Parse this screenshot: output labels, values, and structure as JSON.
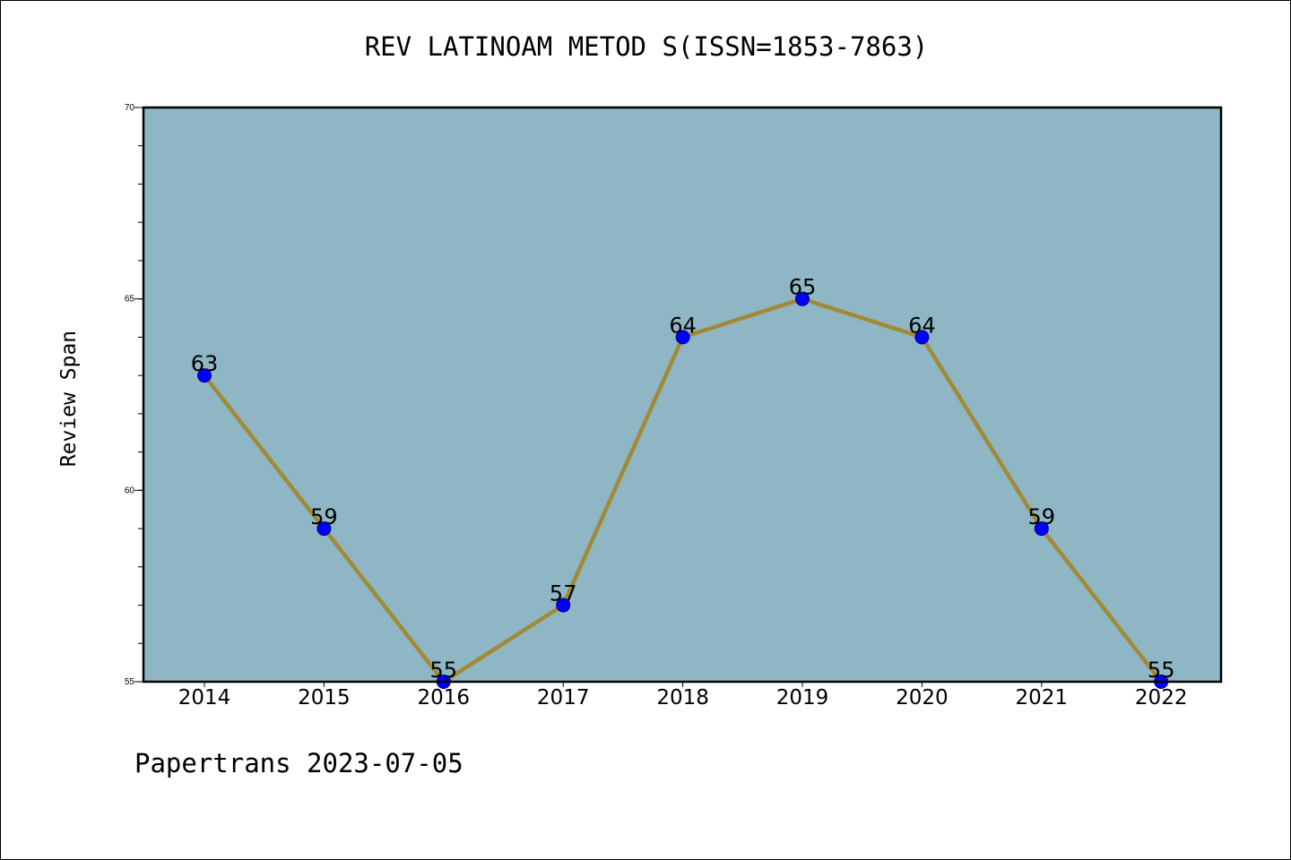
{
  "chart_data": {
    "type": "line",
    "title": "REV LATINOAM METOD S(ISSN=1853-7863)",
    "xlabel": "",
    "ylabel": "Review Span",
    "categories": [
      "2014",
      "2015",
      "2016",
      "2017",
      "2018",
      "2019",
      "2020",
      "2021",
      "2022"
    ],
    "values": [
      63,
      59,
      55,
      57,
      64,
      65,
      64,
      59,
      55
    ],
    "data_labels": [
      "63",
      "59",
      "55",
      "57",
      "64",
      "65",
      "64",
      "59",
      "55"
    ],
    "ylim": [
      55,
      70
    ],
    "yticks": [
      55,
      60,
      65,
      70
    ],
    "ytick_labels": [
      "55",
      "60",
      "65",
      "70"
    ],
    "grid": false,
    "colors": {
      "plot_background": "#8fb6c4",
      "line": "#a08a36",
      "marker": "#0000ff",
      "marker_edge": "#000080"
    }
  },
  "footer": {
    "text": "Papertrans 2023-07-05"
  }
}
